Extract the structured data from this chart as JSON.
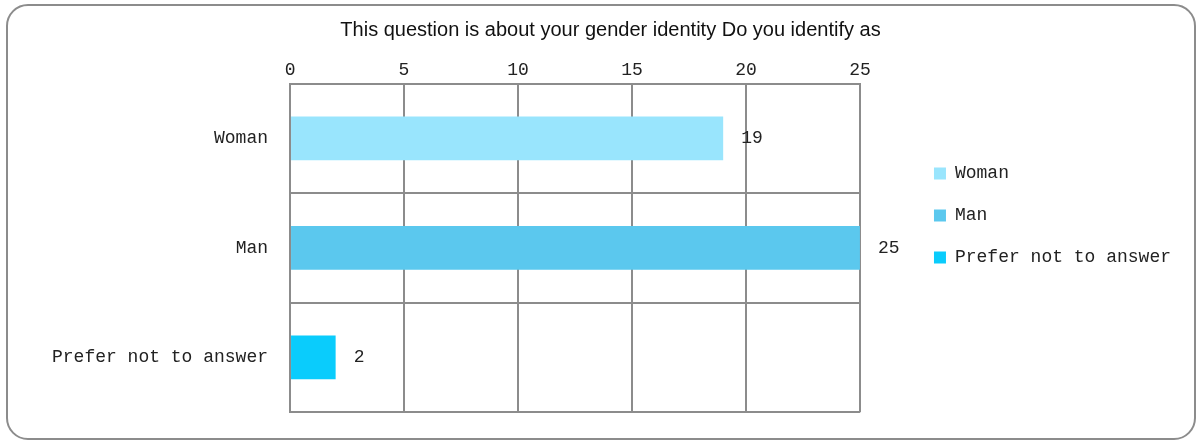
{
  "chart_data": {
    "type": "bar",
    "orientation": "horizontal",
    "title": "This question is about your gender identity Do you identify as",
    "categories": [
      "Woman",
      "Man",
      "Prefer not to answer"
    ],
    "series": [
      {
        "name": "Woman",
        "color": "#99e5fd",
        "values": [
          19,
          null,
          null
        ]
      },
      {
        "name": "Man",
        "color": "#5bc8ee",
        "values": [
          null,
          25,
          null
        ]
      },
      {
        "name": "Prefer not to answer",
        "color": "#0accfc",
        "values": [
          null,
          null,
          2
        ]
      }
    ],
    "xlim": [
      0,
      25
    ],
    "xticks": [
      0,
      5,
      10,
      15,
      20,
      25
    ],
    "grid": true,
    "legend": "right",
    "data_labels": true
  }
}
